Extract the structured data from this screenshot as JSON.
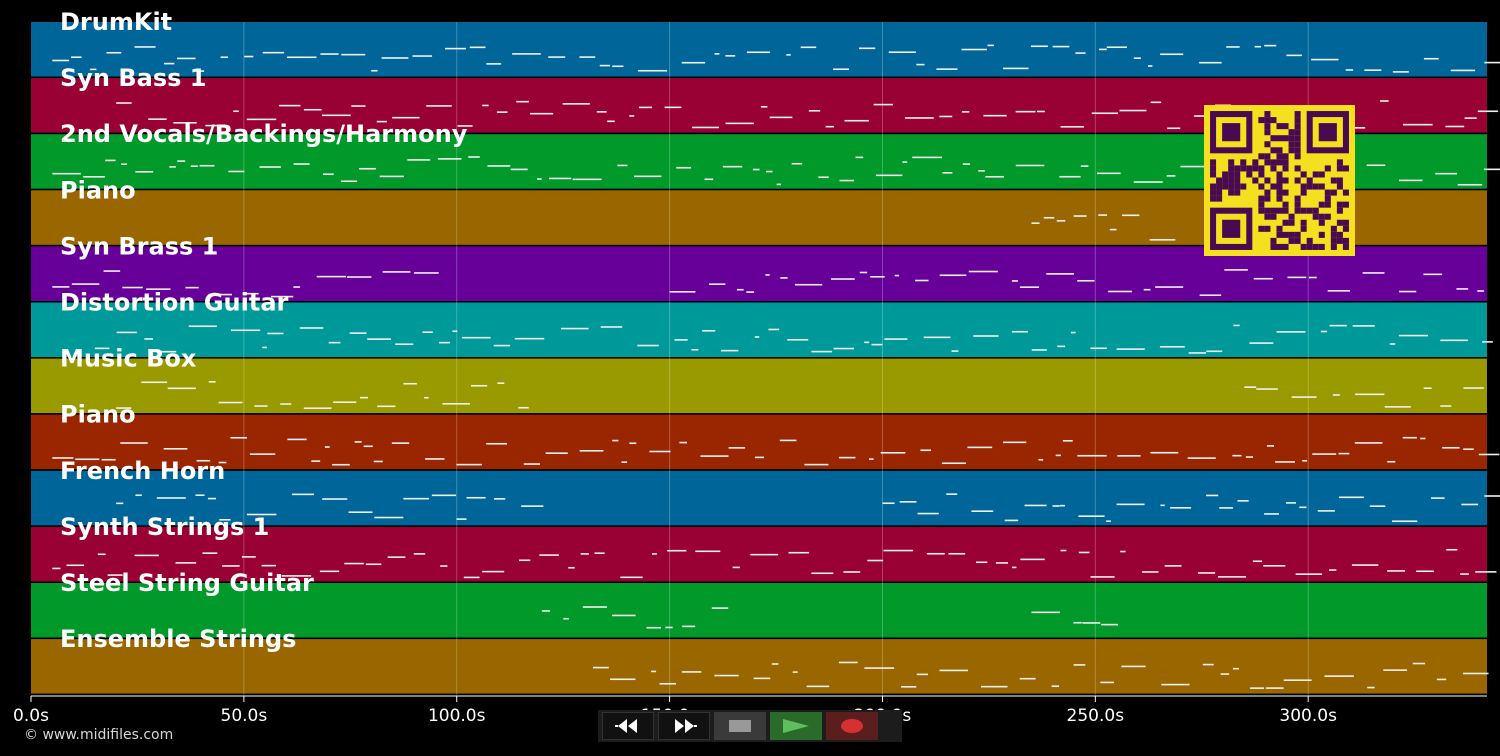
{
  "tracks": [
    {
      "name": "DrumKit",
      "color": "#006699"
    },
    {
      "name": "Syn Bass 1",
      "color": "#990033"
    },
    {
      "name": "2nd Vocals/Backings/Harmony",
      "color": "#00992a"
    },
    {
      "name": "Piano",
      "color": "#996600"
    },
    {
      "name": "Syn Brass 1",
      "color": "#660099"
    },
    {
      "name": "Distortion Guitar",
      "color": "#009999"
    },
    {
      "name": "Music Box",
      "color": "#999900"
    },
    {
      "name": "Piano",
      "color": "#992600"
    },
    {
      "name": "French Horn",
      "color": "#006699"
    },
    {
      "name": "Synth Strings 1",
      "color": "#990033"
    },
    {
      "name": "Steel String Guitar",
      "color": "#00992a"
    },
    {
      "name": "Ensemble Strings",
      "color": "#996600"
    }
  ],
  "timeline": {
    "ticks": [
      {
        "value": 0,
        "label": "0.0s"
      },
      {
        "value": 50,
        "label": "50.0s"
      },
      {
        "value": 100,
        "label": "100.0s"
      },
      {
        "value": 150,
        "label": "150.0s"
      },
      {
        "value": 200,
        "label": "200.0s"
      },
      {
        "value": 250,
        "label": "250.0s"
      },
      {
        "value": 300,
        "label": "300.0s"
      }
    ],
    "end_seconds": 342
  },
  "transport": {
    "rewind_icon": "rewind-icon",
    "fast_forward_icon": "fast-forward-icon",
    "stop_icon": "stop-icon",
    "play_icon": "play-icon",
    "record_icon": "record-icon"
  },
  "footer": {
    "copyright": "© www.midifiles.com"
  },
  "qr": {
    "color": "#f5e020",
    "module_color": "#4a0a50"
  }
}
